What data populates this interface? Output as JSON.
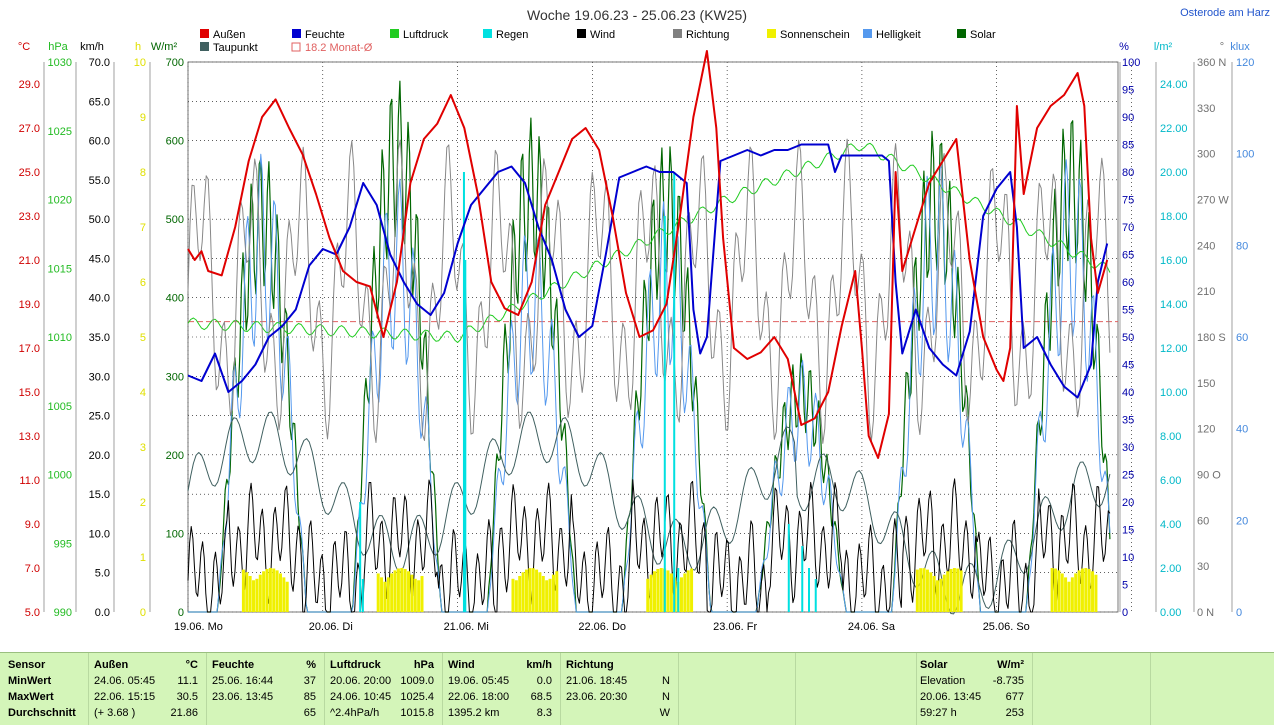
{
  "title": "Woche 19.06.23 - 25.06.23 (KW25)",
  "location": "Osterode am Harz",
  "legend": [
    {
      "label": "Außen",
      "color": "#e00000"
    },
    {
      "label": "Feuchte",
      "color": "#0000d0"
    },
    {
      "label": "Luftdruck",
      "color": "#22cc22"
    },
    {
      "label": "Regen",
      "color": "#00e0e0"
    },
    {
      "label": "Wind",
      "color": "#000000"
    },
    {
      "label": "Richtung",
      "color": "#808080"
    },
    {
      "label": "Sonnenschein",
      "color": "#f0f000"
    },
    {
      "label": "Helligkeit",
      "color": "#5599ee"
    },
    {
      "label": "Solar",
      "color": "#006600"
    },
    {
      "label": "Taupunkt",
      "color": "#406060"
    },
    {
      "label": "18.2 Monat-Ø",
      "color": "#e06060"
    }
  ],
  "chart_data": {
    "type": "line",
    "x_labels": [
      "19.06.  Mo",
      "20.06.  Di",
      "21.06.  Mi",
      "22.06.  Do",
      "23.06.  Fr",
      "24.06.  Sa",
      "25.06.  So"
    ],
    "month_avg_temp": 18.2,
    "axes": {
      "temp": {
        "unit": "°C",
        "ticks": [
          "29.0",
          "27.0",
          "25.0",
          "23.0",
          "21.0",
          "19.0",
          "17.0",
          "15.0",
          "13.0",
          "11.0",
          "9.0",
          "7.0",
          "5.0"
        ],
        "range": [
          5.0,
          30.0
        ]
      },
      "pressure": {
        "unit": "hPa",
        "ticks": [
          "1030",
          "1025",
          "1020",
          "1015",
          "1010",
          "1005",
          "1000",
          "995",
          "990"
        ],
        "range": [
          990,
          1030
        ]
      },
      "wind": {
        "unit": "km/h",
        "ticks": [
          "70.0",
          "65.0",
          "60.0",
          "55.0",
          "50.0",
          "45.0",
          "40.0",
          "35.0",
          "30.0",
          "25.0",
          "20.0",
          "15.0",
          "10.0",
          "5.0",
          "0.0"
        ],
        "range": [
          0,
          70
        ]
      },
      "sunhours": {
        "unit": "h",
        "ticks": [
          "10",
          "9",
          "8",
          "7",
          "6",
          "5",
          "4",
          "3",
          "2",
          "1",
          "0"
        ],
        "range": [
          0,
          10
        ]
      },
      "solar": {
        "unit": "W/m²",
        "ticks": [
          "700",
          "600",
          "500",
          "400",
          "300",
          "200",
          "100",
          "0"
        ],
        "range": [
          0,
          700
        ]
      },
      "humidity": {
        "unit": "%",
        "ticks": [
          "100",
          "95",
          "90",
          "85",
          "80",
          "75",
          "70",
          "65",
          "60",
          "55",
          "50",
          "45",
          "40",
          "35",
          "30",
          "25",
          "20",
          "15",
          "10",
          "5",
          "0"
        ],
        "range": [
          0,
          100
        ]
      },
      "rain": {
        "unit": "l/m²",
        "ticks": [
          "24.00",
          "22.00",
          "20.00",
          "18.00",
          "16.00",
          "14.00",
          "12.00",
          "10.00",
          "8.00",
          "6.00",
          "4.00",
          "2.00",
          "0.00"
        ],
        "range": [
          0,
          25
        ]
      },
      "direction": {
        "unit": "°",
        "ticks": [
          "360 N",
          "330",
          "300",
          "270 W",
          "240",
          "210",
          "180 S",
          "150",
          "120",
          "90 O",
          "60",
          "30",
          "0 N"
        ],
        "range": [
          0,
          360
        ]
      },
      "brightness": {
        "unit": "klux",
        "ticks": [
          "120",
          "100",
          "80",
          "60",
          "40",
          "20",
          "0"
        ],
        "range": [
          0,
          120
        ]
      }
    },
    "series": {
      "temp_out": [
        [
          0,
          21.5
        ],
        [
          0.05,
          21.0
        ],
        [
          0.1,
          21.4
        ],
        [
          0.15,
          20.5
        ],
        [
          0.25,
          20.3
        ],
        [
          0.35,
          22.5
        ],
        [
          0.45,
          25.5
        ],
        [
          0.55,
          27.5
        ],
        [
          0.65,
          28.3
        ],
        [
          0.75,
          27.0
        ],
        [
          0.85,
          25.8
        ],
        [
          0.95,
          24.0
        ],
        [
          1.05,
          22.0
        ],
        [
          1.15,
          20.5
        ],
        [
          1.25,
          20.0
        ],
        [
          1.35,
          19.8
        ],
        [
          1.45,
          17.5
        ],
        [
          1.55,
          20.0
        ],
        [
          1.65,
          24.5
        ],
        [
          1.75,
          26.5
        ],
        [
          1.85,
          27.2
        ],
        [
          1.95,
          28.5
        ],
        [
          2.05,
          27.0
        ],
        [
          2.15,
          24.0
        ],
        [
          2.25,
          20.0
        ],
        [
          2.35,
          18.8
        ],
        [
          2.45,
          18.5
        ],
        [
          2.55,
          20.0
        ],
        [
          2.65,
          23.5
        ],
        [
          2.75,
          25.0
        ],
        [
          2.85,
          26.5
        ],
        [
          2.95,
          27.0
        ],
        [
          3.05,
          26.0
        ],
        [
          3.15,
          23.0
        ],
        [
          3.25,
          19.5
        ],
        [
          3.35,
          17.5
        ],
        [
          3.45,
          17.8
        ],
        [
          3.55,
          19.0
        ],
        [
          3.65,
          23.0
        ],
        [
          3.75,
          27.5
        ],
        [
          3.85,
          30.5
        ],
        [
          3.92,
          27.0
        ],
        [
          3.97,
          22.0
        ],
        [
          4.05,
          17.0
        ],
        [
          4.15,
          16.5
        ],
        [
          4.25,
          16.8
        ],
        [
          4.35,
          17.5
        ],
        [
          4.45,
          16.5
        ],
        [
          4.55,
          13.5
        ],
        [
          4.65,
          13.8
        ],
        [
          4.75,
          15.0
        ],
        [
          4.85,
          18.0
        ],
        [
          4.95,
          20.5
        ],
        [
          5.0,
          17.0
        ],
        [
          5.05,
          13.0
        ],
        [
          5.12,
          12.0
        ],
        [
          5.2,
          14.0
        ],
        [
          5.25,
          25.0
        ],
        [
          5.3,
          20.5
        ],
        [
          5.4,
          22.5
        ],
        [
          5.5,
          24.5
        ],
        [
          5.6,
          25.5
        ],
        [
          5.7,
          26.5
        ],
        [
          5.8,
          21.0
        ],
        [
          5.9,
          17.5
        ],
        [
          6.0,
          16.0
        ],
        [
          6.05,
          15.5
        ],
        [
          6.1,
          17.0
        ],
        [
          6.15,
          28.0
        ],
        [
          6.2,
          24.0
        ],
        [
          6.3,
          27.0
        ],
        [
          6.4,
          28.0
        ],
        [
          6.5,
          28.5
        ],
        [
          6.6,
          29.5
        ],
        [
          6.65,
          28.0
        ],
        [
          6.7,
          22.0
        ],
        [
          6.75,
          19.5
        ],
        [
          6.82,
          21.0
        ]
      ],
      "humidity": [
        [
          0,
          43
        ],
        [
          0.1,
          42
        ],
        [
          0.2,
          47
        ],
        [
          0.3,
          40
        ],
        [
          0.4,
          42
        ],
        [
          0.5,
          45
        ],
        [
          0.6,
          50
        ],
        [
          0.7,
          52
        ],
        [
          0.8,
          55
        ],
        [
          0.9,
          63
        ],
        [
          1.0,
          66
        ],
        [
          1.1,
          65
        ],
        [
          1.2,
          70
        ],
        [
          1.3,
          78
        ],
        [
          1.4,
          74
        ],
        [
          1.5,
          65
        ],
        [
          1.6,
          60
        ],
        [
          1.7,
          56
        ],
        [
          1.8,
          54
        ],
        [
          1.9,
          58
        ],
        [
          2.0,
          67
        ],
        [
          2.1,
          74
        ],
        [
          2.2,
          77
        ],
        [
          2.3,
          80
        ],
        [
          2.4,
          81
        ],
        [
          2.5,
          78
        ],
        [
          2.6,
          70
        ],
        [
          2.7,
          64
        ],
        [
          2.8,
          55
        ],
        [
          2.9,
          50
        ],
        [
          3.0,
          52
        ],
        [
          3.1,
          65
        ],
        [
          3.2,
          79
        ],
        [
          3.3,
          80
        ],
        [
          3.4,
          81
        ],
        [
          3.5,
          80
        ],
        [
          3.6,
          80
        ],
        [
          3.7,
          78
        ],
        [
          3.75,
          55
        ],
        [
          3.8,
          47
        ],
        [
          3.85,
          50
        ],
        [
          3.95,
          82
        ],
        [
          4.05,
          83
        ],
        [
          4.15,
          84
        ],
        [
          4.25,
          83
        ],
        [
          4.35,
          84
        ],
        [
          4.45,
          84
        ],
        [
          4.55,
          85
        ],
        [
          4.65,
          85
        ],
        [
          4.75,
          85
        ],
        [
          4.8,
          80
        ],
        [
          4.85,
          83
        ],
        [
          4.95,
          83
        ],
        [
          5.05,
          83
        ],
        [
          5.15,
          83
        ],
        [
          5.2,
          82
        ],
        [
          5.25,
          60
        ],
        [
          5.3,
          47
        ],
        [
          5.4,
          55
        ],
        [
          5.5,
          48
        ],
        [
          5.6,
          45
        ],
        [
          5.7,
          43
        ],
        [
          5.8,
          51
        ],
        [
          5.9,
          72
        ],
        [
          6.0,
          77
        ],
        [
          6.1,
          80
        ],
        [
          6.15,
          70
        ],
        [
          6.2,
          48
        ],
        [
          6.3,
          50
        ],
        [
          6.4,
          45
        ],
        [
          6.5,
          41
        ],
        [
          6.6,
          39
        ],
        [
          6.7,
          45
        ],
        [
          6.75,
          60
        ],
        [
          6.82,
          67
        ]
      ]
    }
  },
  "footer": {
    "headers": {
      "sensor": "Sensor",
      "aussen": "Außen",
      "aussen_unit": "°C",
      "feuchte": "Feuchte",
      "feuchte_unit": "%",
      "luftdruck": "Luftdruck",
      "luftdruck_unit": "hPa",
      "wind": "Wind",
      "wind_unit": "km/h",
      "richtung": "Richtung",
      "solar": "Solar",
      "solar_unit": "W/m²"
    },
    "rows": [
      {
        "label": "MinWert",
        "aussen_time": "24.06.  05:45",
        "aussen_val": "11.1",
        "feuchte_time": "25.06.  16:44",
        "feuchte_val": "37",
        "luft_time": "20.06.  20:00",
        "luft_val": "1009.0",
        "wind_time": "19.06.  05:45",
        "wind_val": "0.0",
        "richt_time": "21.06.  18:45",
        "richt_val": "N",
        "solar_label": "Elevation",
        "solar_val": "-8.735"
      },
      {
        "label": "MaxWert",
        "aussen_time": "22.06.  15:15",
        "aussen_val": "30.5",
        "feuchte_time": "23.06.  13:45",
        "feuchte_val": "85",
        "luft_time": "24.06.  10:45",
        "luft_val": "1025.4",
        "wind_time": "22.06.  18:00",
        "wind_val": "68.5",
        "richt_time": "23.06.  20:30",
        "richt_val": "N",
        "solar_label": "20.06.  13:45",
        "solar_val": "677"
      },
      {
        "label": "Durchschnitt",
        "aussen_time": "(+ 3.68 )",
        "aussen_val": "21.86",
        "feuchte_time": "",
        "feuchte_val": "65",
        "luft_time": "^2.4hPa/h",
        "luft_val": "1015.8",
        "wind_time": "1395.2 km",
        "wind_val": "8.3",
        "richt_time": "",
        "richt_val": "W",
        "solar_label": "59:27 h",
        "solar_val": "253"
      }
    ]
  }
}
